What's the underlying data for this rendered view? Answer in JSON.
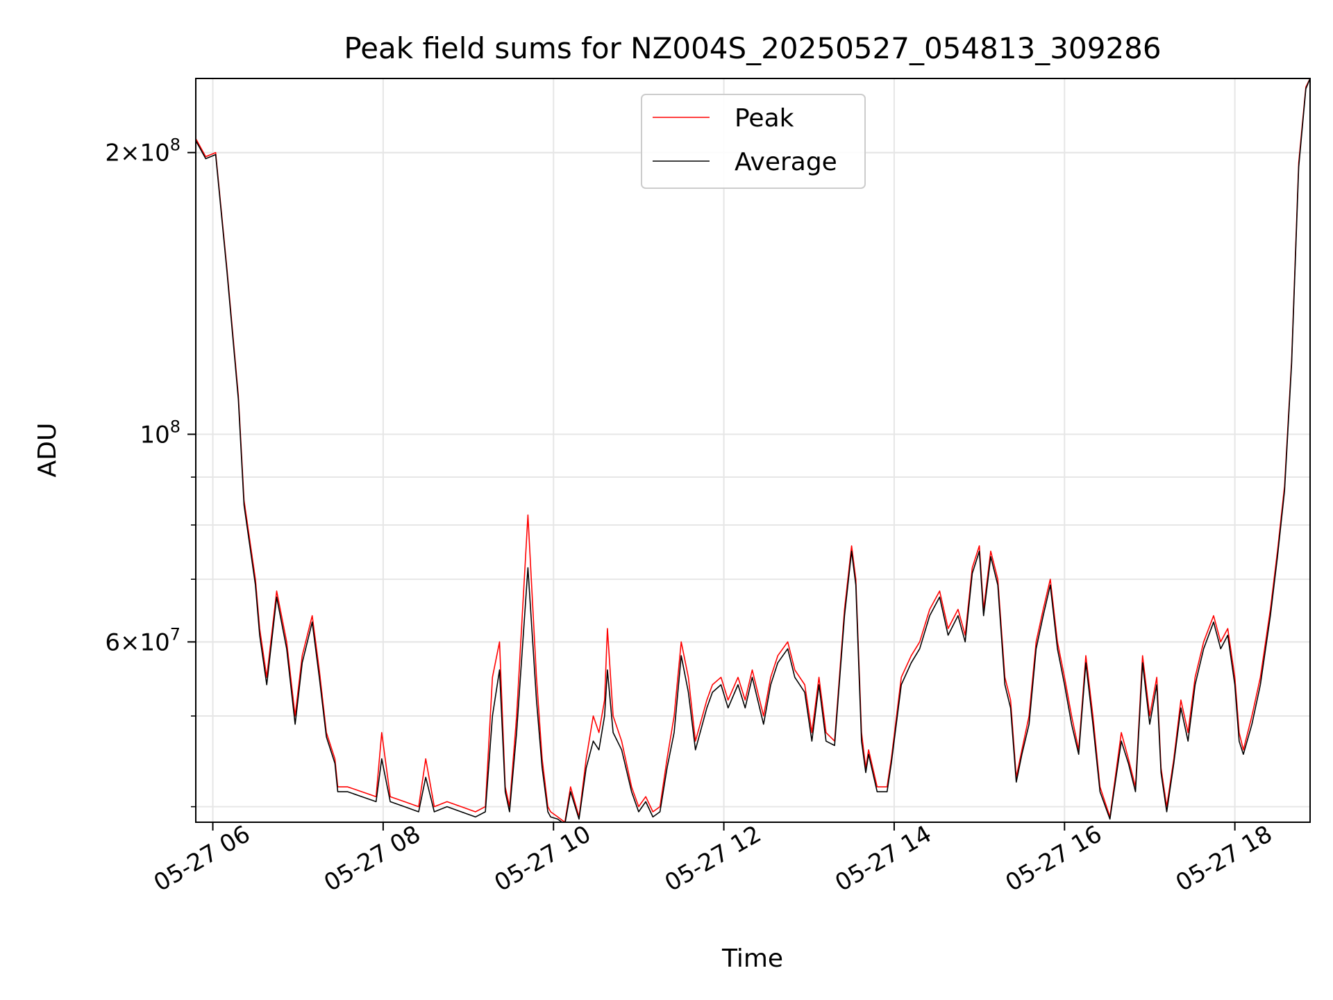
{
  "chart_data": {
    "type": "line",
    "title": "Peak field sums for NZ004S_20250527_054813_309286",
    "xlabel": "Time",
    "ylabel": "ADU",
    "yscale": "log",
    "xlim": [
      "2025-05-27 05:48",
      "2025-05-27 18:53"
    ],
    "ylim": [
      38500000,
      240000000
    ],
    "grid": true,
    "legend_position": "upper center",
    "x_ticks": [
      "2025-05-27 06:00",
      "2025-05-27 08:00",
      "2025-05-27 10:00",
      "2025-05-27 12:00",
      "2025-05-27 14:00",
      "2025-05-27 16:00",
      "2025-05-27 18:00"
    ],
    "x_tick_labels": [
      "05-27 06",
      "05-27 08",
      "05-27 10",
      "05-27 12",
      "05-27 14",
      "05-27 16",
      "05-27 18"
    ],
    "y_major_ticks": [
      {
        "value": 60000000,
        "mantissa": "6",
        "base": "10",
        "exponent": "7"
      },
      {
        "value": 100000000,
        "mantissa": "",
        "base": "10",
        "exponent": "8"
      },
      {
        "value": 200000000,
        "mantissa": "2",
        "base": "10",
        "exponent": "8"
      }
    ],
    "y_minor_ticks": [
      40000000,
      50000000,
      60000000,
      70000000,
      80000000,
      90000000,
      200000000
    ],
    "series": [
      {
        "name": "Peak",
        "color": "#ff0000",
        "x": [
          "2025-05-27 05:48",
          "2025-05-27 05:55",
          "2025-05-27 06:02",
          "2025-05-27 06:10",
          "2025-05-27 06:18",
          "2025-05-27 06:22",
          "2025-05-27 06:30",
          "2025-05-27 06:33",
          "2025-05-27 06:38",
          "2025-05-27 06:45",
          "2025-05-27 06:52",
          "2025-05-27 06:58",
          "2025-05-27 07:03",
          "2025-05-27 07:10",
          "2025-05-27 07:15",
          "2025-05-27 07:20",
          "2025-05-27 07:26",
          "2025-05-27 07:28",
          "2025-05-27 07:35",
          "2025-05-27 07:45",
          "2025-05-27 07:55",
          "2025-05-27 07:59",
          "2025-05-27 08:05",
          "2025-05-27 08:15",
          "2025-05-27 08:25",
          "2025-05-27 08:30",
          "2025-05-27 08:36",
          "2025-05-27 08:45",
          "2025-05-27 08:55",
          "2025-05-27 09:05",
          "2025-05-27 09:12",
          "2025-05-27 09:17",
          "2025-05-27 09:22",
          "2025-05-27 09:26",
          "2025-05-27 09:29",
          "2025-05-27 09:34",
          "2025-05-27 09:42",
          "2025-05-27 09:48",
          "2025-05-27 09:52",
          "2025-05-27 09:56",
          "2025-05-27 09:58",
          "2025-05-27 10:03",
          "2025-05-27 10:08",
          "2025-05-27 10:12",
          "2025-05-27 10:18",
          "2025-05-27 10:23",
          "2025-05-27 10:28",
          "2025-05-27 10:32",
          "2025-05-27 10:36",
          "2025-05-27 10:38",
          "2025-05-27 10:42",
          "2025-05-27 10:48",
          "2025-05-27 10:55",
          "2025-05-27 11:00",
          "2025-05-27 11:05",
          "2025-05-27 11:10",
          "2025-05-27 11:15",
          "2025-05-27 11:20",
          "2025-05-27 11:25",
          "2025-05-27 11:30",
          "2025-05-27 11:35",
          "2025-05-27 11:40",
          "2025-05-27 11:48",
          "2025-05-27 11:52",
          "2025-05-27 11:58",
          "2025-05-27 12:03",
          "2025-05-27 12:10",
          "2025-05-27 12:15",
          "2025-05-27 12:20",
          "2025-05-27 12:28",
          "2025-05-27 12:33",
          "2025-05-27 12:38",
          "2025-05-27 12:45",
          "2025-05-27 12:50",
          "2025-05-27 12:57",
          "2025-05-27 13:02",
          "2025-05-27 13:07",
          "2025-05-27 13:12",
          "2025-05-27 13:18",
          "2025-05-27 13:25",
          "2025-05-27 13:30",
          "2025-05-27 13:33",
          "2025-05-27 13:37",
          "2025-05-27 13:40",
          "2025-05-27 13:42",
          "2025-05-27 13:48",
          "2025-05-27 13:55",
          "2025-05-27 13:58",
          "2025-05-27 14:05",
          "2025-05-27 14:12",
          "2025-05-27 14:18",
          "2025-05-27 14:25",
          "2025-05-27 14:32",
          "2025-05-27 14:38",
          "2025-05-27 14:45",
          "2025-05-27 14:50",
          "2025-05-27 14:55",
          "2025-05-27 15:00",
          "2025-05-27 15:03",
          "2025-05-27 15:08",
          "2025-05-27 15:13",
          "2025-05-27 15:18",
          "2025-05-27 15:22",
          "2025-05-27 15:26",
          "2025-05-27 15:30",
          "2025-05-27 15:35",
          "2025-05-27 15:40",
          "2025-05-27 15:45",
          "2025-05-27 15:50",
          "2025-05-27 15:55",
          "2025-05-27 16:00",
          "2025-05-27 16:05",
          "2025-05-27 16:10",
          "2025-05-27 16:15",
          "2025-05-27 16:20",
          "2025-05-27 16:25",
          "2025-05-27 16:32",
          "2025-05-27 16:40",
          "2025-05-27 16:45",
          "2025-05-27 16:50",
          "2025-05-27 16:55",
          "2025-05-27 17:00",
          "2025-05-27 17:05",
          "2025-05-27 17:08",
          "2025-05-27 17:12",
          "2025-05-27 17:17",
          "2025-05-27 17:22",
          "2025-05-27 17:27",
          "2025-05-27 17:32",
          "2025-05-27 17:38",
          "2025-05-27 17:45",
          "2025-05-27 17:50",
          "2025-05-27 17:55",
          "2025-05-27 18:00",
          "2025-05-27 18:03",
          "2025-05-27 18:06",
          "2025-05-27 18:12",
          "2025-05-27 18:18",
          "2025-05-27 18:25",
          "2025-05-27 18:30",
          "2025-05-27 18:35",
          "2025-05-27 18:40",
          "2025-05-27 18:45",
          "2025-05-27 18:50",
          "2025-05-27 18:53"
        ],
        "y": [
          207000000,
          198000000,
          200000000,
          150000000,
          110000000,
          85000000,
          70000000,
          62000000,
          55000000,
          68000000,
          60000000,
          50000000,
          58000000,
          64000000,
          56000000,
          48000000,
          45000000,
          42000000,
          42000000,
          41500000,
          41000000,
          48000000,
          41000000,
          40500000,
          40000000,
          45000000,
          40000000,
          40500000,
          40000000,
          39500000,
          40000000,
          55000000,
          60000000,
          42000000,
          40000000,
          50000000,
          82000000,
          55000000,
          45000000,
          40000000,
          39500000,
          39000000,
          38500000,
          42000000,
          39000000,
          45000000,
          50000000,
          48000000,
          52000000,
          62000000,
          50000000,
          47000000,
          42000000,
          40000000,
          41000000,
          39500000,
          40000000,
          45000000,
          50000000,
          60000000,
          55000000,
          47000000,
          52000000,
          54000000,
          55000000,
          52000000,
          55000000,
          52000000,
          56000000,
          50000000,
          55000000,
          58000000,
          60000000,
          56000000,
          54000000,
          48000000,
          55000000,
          48000000,
          47000000,
          65000000,
          76000000,
          70000000,
          48000000,
          44000000,
          46000000,
          42000000,
          42000000,
          45000000,
          55000000,
          58000000,
          60000000,
          65000000,
          68000000,
          62000000,
          65000000,
          61000000,
          72000000,
          76000000,
          65000000,
          75000000,
          70000000,
          55000000,
          52000000,
          43000000,
          46000000,
          50000000,
          60000000,
          65000000,
          70000000,
          60000000,
          55000000,
          50000000,
          46000000,
          58000000,
          50000000,
          42000000,
          39000000,
          48000000,
          45000000,
          42000000,
          58000000,
          50000000,
          55000000,
          44000000,
          40000000,
          45000000,
          52000000,
          48000000,
          55000000,
          60000000,
          64000000,
          60000000,
          62000000,
          55000000,
          48000000,
          46000000,
          50000000,
          55000000,
          65000000,
          75000000,
          88000000,
          120000000,
          195000000,
          235000000,
          240000000
        ]
      },
      {
        "name": "Average",
        "color": "#000000",
        "x": [
          "2025-05-27 05:48",
          "2025-05-27 05:55",
          "2025-05-27 06:02",
          "2025-05-27 06:10",
          "2025-05-27 06:18",
          "2025-05-27 06:22",
          "2025-05-27 06:30",
          "2025-05-27 06:33",
          "2025-05-27 06:38",
          "2025-05-27 06:45",
          "2025-05-27 06:52",
          "2025-05-27 06:58",
          "2025-05-27 07:03",
          "2025-05-27 07:10",
          "2025-05-27 07:15",
          "2025-05-27 07:20",
          "2025-05-27 07:26",
          "2025-05-27 07:28",
          "2025-05-27 07:35",
          "2025-05-27 07:45",
          "2025-05-27 07:55",
          "2025-05-27 07:59",
          "2025-05-27 08:05",
          "2025-05-27 08:15",
          "2025-05-27 08:25",
          "2025-05-27 08:30",
          "2025-05-27 08:36",
          "2025-05-27 08:45",
          "2025-05-27 08:55",
          "2025-05-27 09:05",
          "2025-05-27 09:12",
          "2025-05-27 09:17",
          "2025-05-27 09:22",
          "2025-05-27 09:26",
          "2025-05-27 09:29",
          "2025-05-27 09:34",
          "2025-05-27 09:42",
          "2025-05-27 09:48",
          "2025-05-27 09:52",
          "2025-05-27 09:56",
          "2025-05-27 09:58",
          "2025-05-27 10:03",
          "2025-05-27 10:08",
          "2025-05-27 10:12",
          "2025-05-27 10:18",
          "2025-05-27 10:23",
          "2025-05-27 10:28",
          "2025-05-27 10:32",
          "2025-05-27 10:36",
          "2025-05-27 10:38",
          "2025-05-27 10:42",
          "2025-05-27 10:48",
          "2025-05-27 10:55",
          "2025-05-27 11:00",
          "2025-05-27 11:05",
          "2025-05-27 11:10",
          "2025-05-27 11:15",
          "2025-05-27 11:20",
          "2025-05-27 11:25",
          "2025-05-27 11:30",
          "2025-05-27 11:35",
          "2025-05-27 11:40",
          "2025-05-27 11:48",
          "2025-05-27 11:52",
          "2025-05-27 11:58",
          "2025-05-27 12:03",
          "2025-05-27 12:10",
          "2025-05-27 12:15",
          "2025-05-27 12:20",
          "2025-05-27 12:28",
          "2025-05-27 12:33",
          "2025-05-27 12:38",
          "2025-05-27 12:45",
          "2025-05-27 12:50",
          "2025-05-27 12:57",
          "2025-05-27 13:02",
          "2025-05-27 13:07",
          "2025-05-27 13:12",
          "2025-05-27 13:18",
          "2025-05-27 13:25",
          "2025-05-27 13:30",
          "2025-05-27 13:33",
          "2025-05-27 13:37",
          "2025-05-27 13:40",
          "2025-05-27 13:42",
          "2025-05-27 13:48",
          "2025-05-27 13:55",
          "2025-05-27 13:58",
          "2025-05-27 14:05",
          "2025-05-27 14:12",
          "2025-05-27 14:18",
          "2025-05-27 14:25",
          "2025-05-27 14:32",
          "2025-05-27 14:38",
          "2025-05-27 14:45",
          "2025-05-27 14:50",
          "2025-05-27 14:55",
          "2025-05-27 15:00",
          "2025-05-27 15:03",
          "2025-05-27 15:08",
          "2025-05-27 15:13",
          "2025-05-27 15:18",
          "2025-05-27 15:22",
          "2025-05-27 15:26",
          "2025-05-27 15:30",
          "2025-05-27 15:35",
          "2025-05-27 15:40",
          "2025-05-27 15:45",
          "2025-05-27 15:50",
          "2025-05-27 15:55",
          "2025-05-27 16:00",
          "2025-05-27 16:05",
          "2025-05-27 16:10",
          "2025-05-27 16:15",
          "2025-05-27 16:20",
          "2025-05-27 16:25",
          "2025-05-27 16:32",
          "2025-05-27 16:40",
          "2025-05-27 16:45",
          "2025-05-27 16:50",
          "2025-05-27 16:55",
          "2025-05-27 17:00",
          "2025-05-27 17:05",
          "2025-05-27 17:08",
          "2025-05-27 17:12",
          "2025-05-27 17:17",
          "2025-05-27 17:22",
          "2025-05-27 17:27",
          "2025-05-27 17:32",
          "2025-05-27 17:38",
          "2025-05-27 17:45",
          "2025-05-27 17:50",
          "2025-05-27 17:55",
          "2025-05-27 18:00",
          "2025-05-27 18:03",
          "2025-05-27 18:06",
          "2025-05-27 18:12",
          "2025-05-27 18:18",
          "2025-05-27 18:25",
          "2025-05-27 18:30",
          "2025-05-27 18:35",
          "2025-05-27 18:40",
          "2025-05-27 18:45",
          "2025-05-27 18:50",
          "2025-05-27 18:53"
        ],
        "y": [
          206000000,
          197000000,
          199000000,
          149000000,
          109000000,
          84000000,
          69000000,
          61000000,
          54000000,
          67000000,
          59000000,
          49000000,
          57000000,
          63000000,
          55000000,
          47500000,
          44500000,
          41500000,
          41500000,
          41000000,
          40500000,
          45000000,
          40500000,
          40000000,
          39500000,
          43000000,
          39500000,
          40000000,
          39500000,
          39000000,
          39500000,
          50000000,
          56000000,
          41500000,
          39500000,
          48000000,
          72000000,
          52000000,
          44000000,
          39500000,
          39000000,
          38800000,
          38300000,
          41500000,
          38800000,
          44000000,
          47000000,
          46000000,
          50000000,
          56000000,
          48000000,
          46000000,
          41500000,
          39500000,
          40500000,
          39000000,
          39500000,
          44000000,
          48000000,
          58000000,
          53000000,
          46000000,
          51000000,
          53000000,
          54000000,
          51000000,
          54000000,
          51000000,
          55000000,
          49000000,
          54000000,
          57000000,
          59000000,
          55000000,
          53000000,
          47000000,
          54000000,
          47000000,
          46500000,
          64000000,
          75000000,
          69000000,
          47000000,
          43500000,
          45500000,
          41500000,
          41500000,
          44500000,
          54000000,
          57000000,
          59000000,
          64000000,
          67000000,
          61000000,
          64000000,
          60000000,
          71000000,
          75000000,
          64000000,
          74000000,
          69000000,
          54000000,
          51000000,
          42500000,
          45500000,
          49000000,
          59000000,
          64000000,
          69000000,
          59000000,
          54000000,
          49000000,
          45500000,
          57000000,
          49000000,
          41500000,
          38800000,
          47000000,
          44500000,
          41500000,
          57000000,
          49000000,
          54000000,
          43500000,
          39500000,
          44500000,
          51000000,
          47000000,
          54000000,
          59000000,
          63000000,
          59000000,
          61000000,
          54000000,
          47000000,
          45500000,
          49000000,
          54000000,
          64000000,
          74000000,
          87000000,
          119000000,
          193000000,
          234000000,
          240000000
        ]
      }
    ]
  }
}
